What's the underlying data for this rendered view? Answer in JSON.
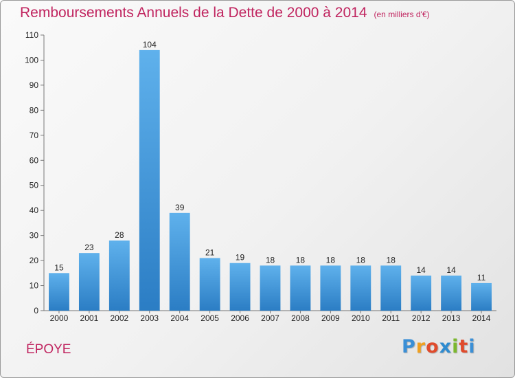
{
  "header": {
    "title": "Remboursements Annuels de la Dette de 2000 à 2014",
    "subtitle": "(en milliers d'€)"
  },
  "commune": "ÉPOYE",
  "logo": {
    "letters": [
      "P",
      "r",
      "o",
      "x",
      "i",
      "t",
      "i"
    ],
    "colors": [
      "#3a8fd6",
      "#f0a020",
      "#e04b2c",
      "#2e8bd0",
      "#7bb82d",
      "#e04b2c",
      "#3a8fd6"
    ]
  },
  "colors": {
    "bar_top": "#5fb1ec",
    "bar_bottom": "#2b7dc4",
    "title": "#c0245f"
  },
  "chart_data": {
    "type": "bar",
    "title": "Remboursements Annuels de la Dette de 2000 à 2014",
    "subtitle": "(en milliers d'€)",
    "categories": [
      "2000",
      "2001",
      "2002",
      "2003",
      "2004",
      "2005",
      "2006",
      "2007",
      "2008",
      "2009",
      "2010",
      "2011",
      "2012",
      "2013",
      "2014"
    ],
    "values": [
      15,
      23,
      28,
      104,
      39,
      21,
      19,
      18,
      18,
      18,
      18,
      18,
      14,
      14,
      11
    ],
    "ylim": [
      0,
      110
    ],
    "yticks": [
      0,
      10,
      20,
      30,
      40,
      50,
      60,
      70,
      80,
      90,
      100,
      110
    ],
    "grid": false,
    "legend": "none"
  }
}
